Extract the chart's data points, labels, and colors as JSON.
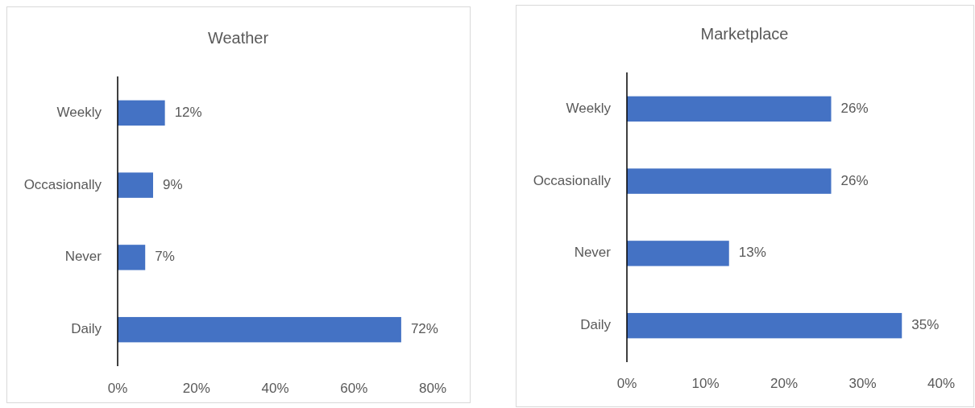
{
  "chart_data": [
    {
      "type": "bar",
      "orientation": "horizontal",
      "title": "Weather",
      "categories": [
        "Weekly",
        "Occasionally",
        "Never",
        "Daily"
      ],
      "values": [
        12,
        9,
        7,
        72
      ],
      "value_labels": [
        "12%",
        "9%",
        "7%",
        "72%"
      ],
      "color": "#4472c4",
      "xlim": [
        0,
        80
      ],
      "xticks": [
        {
          "value": 0,
          "label": "0%"
        },
        {
          "value": 20,
          "label": "20%"
        },
        {
          "value": 40,
          "label": "40%"
        },
        {
          "value": 60,
          "label": "60%"
        },
        {
          "value": 80,
          "label": "80%"
        }
      ]
    },
    {
      "type": "bar",
      "orientation": "horizontal",
      "title": "Marketplace",
      "categories": [
        "Weekly",
        "Occasionally",
        "Never",
        "Daily"
      ],
      "values": [
        26,
        26,
        13,
        35
      ],
      "value_labels": [
        "26%",
        "26%",
        "13%",
        "35%"
      ],
      "color": "#4472c4",
      "xlim": [
        0,
        40
      ],
      "xticks": [
        {
          "value": 0,
          "label": "0%"
        },
        {
          "value": 10,
          "label": "10%"
        },
        {
          "value": 20,
          "label": "20%"
        },
        {
          "value": 30,
          "label": "30%"
        },
        {
          "value": 40,
          "label": "40%"
        }
      ]
    }
  ]
}
